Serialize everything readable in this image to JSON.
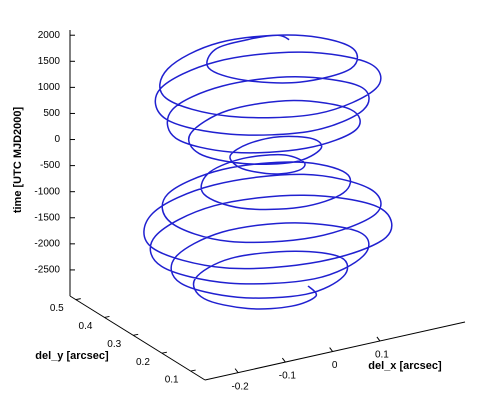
{
  "chart_data": {
    "type": "line3d",
    "xlabel": "del_x [arcsec]",
    "ylabel": "del_y [arcsec]",
    "zlabel": "time [UTC MJD2000]",
    "color": "#2020d0",
    "xlim": [
      -0.27,
      0.28
    ],
    "ylim": [
      0.05,
      0.52
    ],
    "zlim": [
      -3000,
      2100
    ],
    "xticks": [
      -0.2,
      -0.1,
      0,
      0.1
    ],
    "yticks": [
      0.1,
      0.2,
      0.3,
      0.4,
      0.5
    ],
    "zticks": [
      -2500,
      -2000,
      -1500,
      -1000,
      -500,
      0,
      500,
      1000,
      1500,
      2000
    ],
    "x": [
      0.06,
      0.06,
      0.01,
      -0.06,
      -0.11,
      -0.08,
      0.01,
      0.13,
      0.19,
      0.14,
      0.01,
      -0.13,
      -0.2,
      -0.14,
      0.01,
      0.17,
      0.23,
      0.16,
      0.01,
      -0.14,
      -0.2,
      -0.13,
      0.01,
      0.15,
      0.21,
      0.14,
      0.01,
      -0.12,
      -0.18,
      -0.12,
      0.01,
      0.14,
      0.19,
      0.13,
      0.01,
      -0.1,
      -0.13,
      -0.08,
      0.01,
      0.09,
      0.11,
      0.07,
      0.01,
      -0.04,
      -0.05,
      -0.03,
      0.01,
      0.06,
      0.09,
      0.08,
      0.01,
      -0.07,
      -0.12,
      -0.09,
      0.01,
      0.12,
      0.18,
      0.14,
      0.01,
      -0.13,
      -0.19,
      -0.14,
      0.01,
      0.17,
      0.23,
      0.17,
      0.01,
      -0.15,
      -0.23,
      -0.16,
      0.01,
      0.18,
      0.25,
      0.17,
      0.01,
      -0.15,
      -0.21,
      -0.14,
      0.01,
      0.15,
      0.21,
      0.14,
      0.01,
      -0.12,
      -0.17,
      -0.11,
      0.01,
      0.12,
      0.17,
      0.12,
      0.01,
      -0.09,
      -0.12,
      -0.07,
      0.01,
      0.08,
      0.1
    ],
    "y": [
      0.3,
      0.34,
      0.36,
      0.36,
      0.3,
      0.23,
      0.18,
      0.2,
      0.3,
      0.41,
      0.46,
      0.41,
      0.3,
      0.18,
      0.12,
      0.18,
      0.3,
      0.42,
      0.47,
      0.42,
      0.3,
      0.19,
      0.14,
      0.19,
      0.3,
      0.41,
      0.45,
      0.41,
      0.3,
      0.2,
      0.16,
      0.2,
      0.3,
      0.4,
      0.43,
      0.38,
      0.3,
      0.23,
      0.2,
      0.24,
      0.3,
      0.35,
      0.36,
      0.34,
      0.3,
      0.27,
      0.25,
      0.26,
      0.3,
      0.36,
      0.39,
      0.37,
      0.3,
      0.22,
      0.18,
      0.21,
      0.3,
      0.4,
      0.45,
      0.41,
      0.3,
      0.18,
      0.13,
      0.18,
      0.3,
      0.43,
      0.48,
      0.43,
      0.3,
      0.16,
      0.11,
      0.16,
      0.3,
      0.43,
      0.48,
      0.42,
      0.3,
      0.18,
      0.13,
      0.19,
      0.3,
      0.41,
      0.45,
      0.4,
      0.3,
      0.2,
      0.16,
      0.21,
      0.3,
      0.38,
      0.42,
      0.38,
      0.3,
      0.23,
      0.21,
      0.24,
      0.3
    ],
    "z": [
      2000,
      1950,
      1900,
      1850,
      1800,
      1750,
      1700,
      1650,
      1600,
      1550,
      1500,
      1450,
      1400,
      1350,
      1300,
      1250,
      1200,
      1150,
      1100,
      1050,
      1000,
      950,
      900,
      850,
      800,
      750,
      700,
      650,
      600,
      550,
      500,
      450,
      400,
      350,
      300,
      250,
      200,
      150,
      100,
      50,
      0,
      -50,
      -100,
      -150,
      -200,
      -250,
      -300,
      -350,
      -400,
      -450,
      -500,
      -550,
      -600,
      -650,
      -700,
      -750,
      -800,
      -850,
      -900,
      -950,
      -1000,
      -1050,
      -1100,
      -1150,
      -1200,
      -1250,
      -1300,
      -1350,
      -1400,
      -1450,
      -1500,
      -1550,
      -1600,
      -1650,
      -1700,
      -1750,
      -1800,
      -1850,
      -1900,
      -1950,
      -2000,
      -2050,
      -2100,
      -2150,
      -2200,
      -2250,
      -2300,
      -2350,
      -2400,
      -2450,
      -2500,
      -2550,
      -2600,
      -2650,
      -2700,
      -2750,
      -2800
    ]
  }
}
